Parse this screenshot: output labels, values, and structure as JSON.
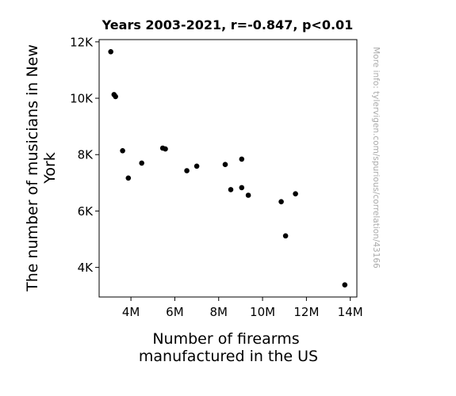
{
  "chart_data": {
    "type": "scatter",
    "title": "Years 2003-2021, r=-0.847, p<0.01",
    "xlabel_lines": [
      "Number of firearms",
      "manufactured in the US"
    ],
    "ylabel_lines": [
      "The number of musicians in New",
      "York"
    ],
    "watermark": "More info: tylervigen.com/spurious/correlation/43166",
    "xlim": [
      2550000,
      14300000
    ],
    "ylim": [
      2950,
      12080
    ],
    "xticks": [
      {
        "value": 4000000,
        "label": "4M"
      },
      {
        "value": 6000000,
        "label": "6M"
      },
      {
        "value": 8000000,
        "label": "8M"
      },
      {
        "value": 10000000,
        "label": "10M"
      },
      {
        "value": 12000000,
        "label": "12M"
      },
      {
        "value": 14000000,
        "label": "14M"
      }
    ],
    "yticks": [
      {
        "value": 4000,
        "label": "4K"
      },
      {
        "value": 6000,
        "label": "6K"
      },
      {
        "value": 8000,
        "label": "8K"
      },
      {
        "value": 10000,
        "label": "10K"
      },
      {
        "value": 12000,
        "label": "12K"
      }
    ],
    "grid": false,
    "marker_color": "#000000",
    "points": [
      {
        "x": 3080000,
        "y": 11650
      },
      {
        "x": 3230000,
        "y": 10130
      },
      {
        "x": 3300000,
        "y": 10060
      },
      {
        "x": 3620000,
        "y": 8140
      },
      {
        "x": 3880000,
        "y": 7170
      },
      {
        "x": 4490000,
        "y": 7700
      },
      {
        "x": 5450000,
        "y": 8230
      },
      {
        "x": 5570000,
        "y": 8200
      },
      {
        "x": 6550000,
        "y": 7430
      },
      {
        "x": 7000000,
        "y": 7590
      },
      {
        "x": 8300000,
        "y": 7650
      },
      {
        "x": 8550000,
        "y": 6760
      },
      {
        "x": 9050000,
        "y": 7840
      },
      {
        "x": 9050000,
        "y": 6830
      },
      {
        "x": 9350000,
        "y": 6560
      },
      {
        "x": 10850000,
        "y": 6330
      },
      {
        "x": 11050000,
        "y": 5120
      },
      {
        "x": 11500000,
        "y": 6610
      },
      {
        "x": 13750000,
        "y": 3380
      }
    ]
  }
}
